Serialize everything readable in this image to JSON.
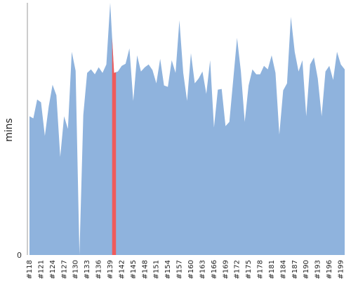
{
  "chart_data": {
    "type": "area",
    "ylabel": "mins",
    "ylim": [
      0,
      360
    ],
    "y_ticks": [
      0
    ],
    "x_labels_every": 3,
    "x_start_build": 118,
    "colors": {
      "area": "#8fb3dd",
      "highlight": "#f05b5b",
      "axis": "#999999"
    },
    "highlight_index": 22,
    "values": [
      198,
      195,
      222,
      218,
      170,
      212,
      243,
      228,
      140,
      198,
      180,
      290,
      263,
      0,
      200,
      260,
      265,
      258,
      268,
      260,
      272,
      360,
      260,
      262,
      270,
      273,
      295,
      220,
      285,
      262,
      268,
      272,
      264,
      245,
      280,
      242,
      240,
      278,
      260,
      335,
      260,
      220,
      288,
      245,
      252,
      262,
      230,
      278,
      182,
      236,
      237,
      184,
      190,
      250,
      310,
      262,
      190,
      242,
      265,
      258,
      258,
      270,
      265,
      285,
      260,
      172,
      235,
      245,
      340,
      290,
      262,
      278,
      198,
      272,
      282,
      252,
      198,
      262,
      270,
      250,
      290,
      272,
      265
    ]
  }
}
